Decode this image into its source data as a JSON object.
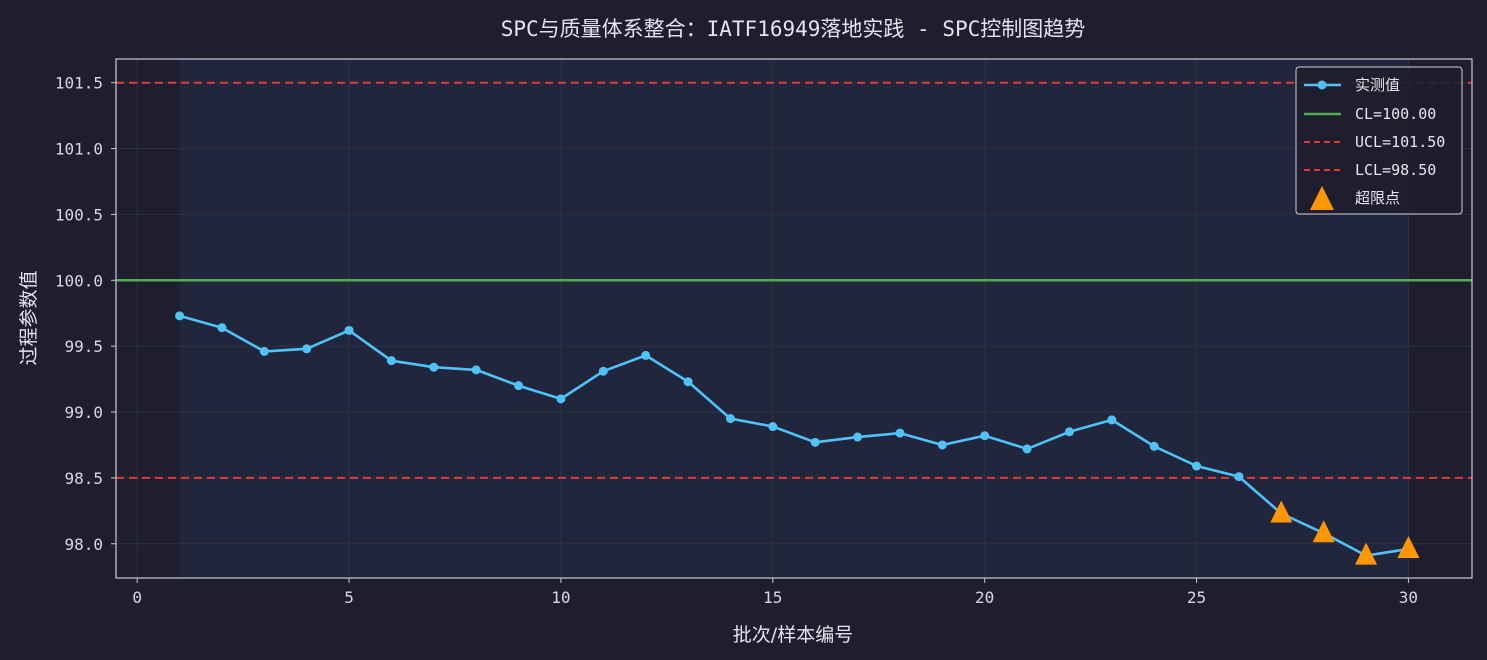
{
  "chart_data": {
    "type": "line",
    "title": "SPC与质量体系整合：IATF16949落地实践 - SPC控制图趋势",
    "xlabel": "批次/样本编号",
    "ylabel": "过程参数值",
    "xlim": [
      -0.5,
      31.5
    ],
    "ylim": [
      97.74,
      101.68
    ],
    "xticks": [
      0,
      5,
      10,
      15,
      20,
      25,
      30
    ],
    "yticks": [
      98.0,
      98.5,
      99.0,
      99.5,
      100.0,
      100.5,
      101.0,
      101.5
    ],
    "ytick_labels": [
      "98.0",
      "98.5",
      "99.0",
      "99.5",
      "100.0",
      "100.5",
      "101.0",
      "101.5"
    ],
    "grid": true,
    "legend_position": "top-right",
    "x": [
      1,
      2,
      3,
      4,
      5,
      6,
      7,
      8,
      9,
      10,
      11,
      12,
      13,
      14,
      15,
      16,
      17,
      18,
      19,
      20,
      21,
      22,
      23,
      24,
      25,
      26,
      27,
      28,
      29,
      30
    ],
    "series": [
      {
        "name": "实测值",
        "color": "#4fc3f7",
        "values": [
          99.73,
          99.64,
          99.46,
          99.48,
          99.62,
          99.39,
          99.34,
          99.32,
          99.2,
          99.1,
          99.31,
          99.43,
          99.23,
          98.95,
          98.89,
          98.77,
          98.81,
          98.84,
          98.75,
          98.82,
          98.72,
          98.85,
          98.94,
          98.74,
          98.59,
          98.51,
          98.23,
          98.08,
          97.91,
          97.96
        ]
      }
    ],
    "center_line": {
      "label": "CL=100.00",
      "value": 100.0,
      "color": "#4caf50"
    },
    "ucl": {
      "label": "UCL=101.50",
      "value": 101.5,
      "color": "#e53935"
    },
    "lcl": {
      "label": "LCL=98.50",
      "value": 98.5,
      "color": "#e53935"
    },
    "out_of_control": {
      "label": "超限点",
      "color": "#ff9800",
      "points": [
        {
          "x": 27,
          "y": 98.23
        },
        {
          "x": 28,
          "y": 98.08
        },
        {
          "x": 29,
          "y": 97.91
        },
        {
          "x": 30,
          "y": 97.96
        }
      ]
    },
    "colors": {
      "background": "#1e1e2e",
      "plot_bg": "#1e1e2e",
      "shaded_band": "#22283f",
      "axis": "#c8c8d4",
      "grid": "#2d3142"
    }
  }
}
